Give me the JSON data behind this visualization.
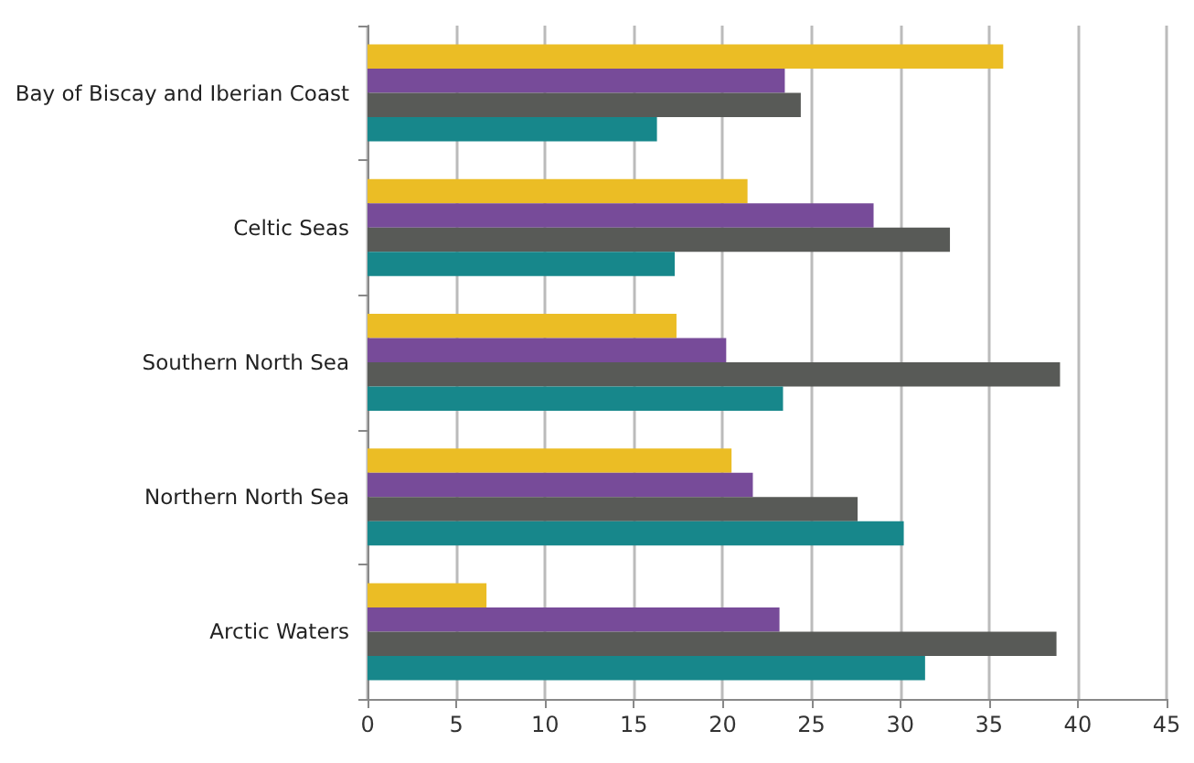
{
  "chart_data": {
    "type": "bar",
    "orientation": "horizontal",
    "categories": [
      "Bay of Biscay and Iberian Coast",
      "Celtic Seas",
      "Southern North Sea",
      "Northern North Sea",
      "Arctic Waters"
    ],
    "series": [
      {
        "color": "#ebbd25",
        "values": [
          35.8,
          21.4,
          17.4,
          20.5,
          6.7
        ]
      },
      {
        "color": "#774b99",
        "values": [
          23.5,
          28.5,
          20.2,
          21.7,
          23.2
        ]
      },
      {
        "color": "#585a57",
        "values": [
          24.4,
          32.8,
          39.0,
          27.6,
          38.8
        ]
      },
      {
        "color": "#17878b",
        "values": [
          16.3,
          17.3,
          23.4,
          30.2,
          31.4
        ]
      }
    ],
    "xlim": [
      0,
      45
    ],
    "xticks": [
      0,
      5,
      10,
      15,
      20,
      25,
      30,
      35,
      40,
      45
    ],
    "grid": "x"
  }
}
